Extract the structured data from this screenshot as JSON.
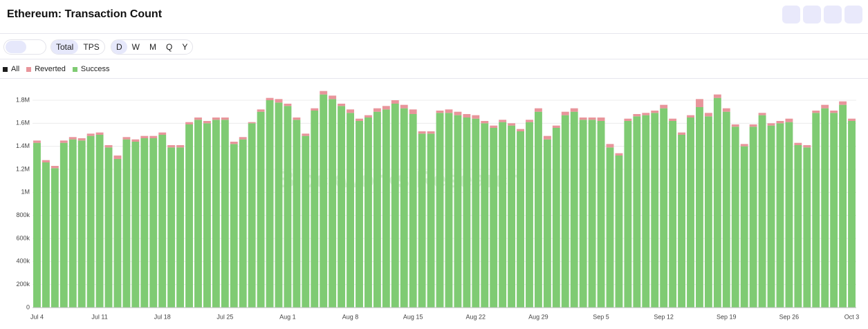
{
  "header": {
    "title": "Ethereum: Transaction Count"
  },
  "toolbar": {
    "measures": [
      "Total",
      "TPS"
    ],
    "periods": [
      "D",
      "W",
      "M",
      "Q",
      "Y"
    ]
  },
  "chart_data": {
    "type": "stacked_bar",
    "watermark": "Blockworks Research",
    "legend_items": [
      {
        "name": "All",
        "color": "#1c1c1c"
      }
    ],
    "categories": [
      "Jul 4",
      null,
      null,
      null,
      null,
      null,
      null,
      "Jul 11",
      null,
      null,
      null,
      null,
      null,
      null,
      "Jul 18",
      null,
      null,
      null,
      null,
      null,
      null,
      "Jul 25",
      null,
      null,
      null,
      null,
      null,
      null,
      "Aug 1",
      null,
      null,
      null,
      null,
      null,
      null,
      "Aug 8",
      null,
      null,
      null,
      null,
      null,
      null,
      "Aug 15",
      null,
      null,
      null,
      null,
      null,
      null,
      "Aug 22",
      null,
      null,
      null,
      null,
      null,
      null,
      "Aug 29",
      null,
      null,
      null,
      null,
      null,
      null,
      "Sep 5",
      null,
      null,
      null,
      null,
      null,
      null,
      "Sep 12",
      null,
      null,
      null,
      null,
      null,
      null,
      "Sep 19",
      null,
      null,
      null,
      null,
      null,
      null,
      "Sep 26",
      null,
      null,
      null,
      null,
      null,
      null,
      "Oct 3"
    ],
    "series": [
      {
        "name": "Reverted",
        "color": "#e8959b",
        "values": [
          20000,
          20000,
          20000,
          20000,
          20000,
          20000,
          20000,
          20000,
          20000,
          30000,
          20000,
          20000,
          20000,
          20000,
          20000,
          20000,
          20000,
          20000,
          20000,
          20000,
          20000,
          20000,
          20000,
          20000,
          10000,
          20000,
          20000,
          30000,
          20000,
          20000,
          20000,
          20000,
          30000,
          30000,
          20000,
          30000,
          20000,
          20000,
          30000,
          30000,
          30000,
          30000,
          40000,
          20000,
          20000,
          20000,
          30000,
          30000,
          30000,
          30000,
          20000,
          20000,
          20000,
          20000,
          20000,
          20000,
          30000,
          30000,
          20000,
          30000,
          30000,
          20000,
          20000,
          30000,
          30000,
          20000,
          20000,
          20000,
          20000,
          20000,
          30000,
          20000,
          20000,
          20000,
          70000,
          30000,
          30000,
          30000,
          20000,
          20000,
          20000,
          20000,
          20000,
          20000,
          30000,
          20000,
          20000,
          20000,
          30000,
          20000,
          30000,
          20000
        ]
      },
      {
        "name": "Success",
        "color": "#7fcb73",
        "values": [
          1430000,
          1260000,
          1210000,
          1430000,
          1460000,
          1450000,
          1490000,
          1500000,
          1390000,
          1290000,
          1460000,
          1440000,
          1470000,
          1470000,
          1500000,
          1390000,
          1390000,
          1590000,
          1630000,
          1600000,
          1630000,
          1630000,
          1420000,
          1460000,
          1600000,
          1700000,
          1800000,
          1780000,
          1750000,
          1630000,
          1490000,
          1710000,
          1850000,
          1810000,
          1750000,
          1690000,
          1620000,
          1650000,
          1700000,
          1720000,
          1770000,
          1730000,
          1680000,
          1510000,
          1510000,
          1690000,
          1690000,
          1670000,
          1650000,
          1640000,
          1600000,
          1560000,
          1610000,
          1580000,
          1530000,
          1610000,
          1700000,
          1460000,
          1560000,
          1670000,
          1700000,
          1630000,
          1630000,
          1620000,
          1390000,
          1320000,
          1620000,
          1660000,
          1670000,
          1690000,
          1730000,
          1620000,
          1500000,
          1650000,
          1740000,
          1660000,
          1820000,
          1700000,
          1570000,
          1400000,
          1570000,
          1670000,
          1580000,
          1600000,
          1610000,
          1410000,
          1390000,
          1690000,
          1730000,
          1690000,
          1760000,
          1620000
        ]
      }
    ],
    "ylim": [
      0,
      1950000
    ],
    "yticks": [
      0,
      {
        "value": 200000,
        "label": "200k"
      },
      {
        "value": 400000,
        "label": "400k"
      },
      {
        "value": 600000,
        "label": "600k"
      },
      {
        "value": 800000,
        "label": "800k"
      },
      {
        "value": 1000000,
        "label": "1M"
      },
      {
        "value": 1200000,
        "label": "1.2M"
      },
      {
        "value": 1400000,
        "label": "1.4M"
      },
      {
        "value": 1600000,
        "label": "1.6M"
      },
      {
        "value": 1800000,
        "label": "1.8M"
      }
    ],
    "grid": true
  }
}
